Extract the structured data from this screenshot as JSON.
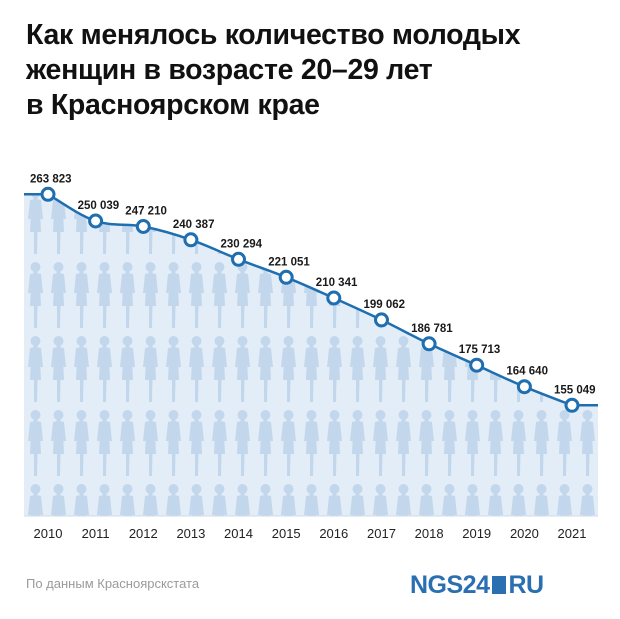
{
  "header": {
    "title_lines": [
      "Как менялось количество молодых",
      "женщин в возрасте 20–29 лет",
      "в Красноярском крае"
    ]
  },
  "footer": {
    "source": "По данным Красноярскстата",
    "logo_main": "NGS24",
    "logo_suffix": "RU"
  },
  "chart_data": {
    "type": "area",
    "x": [
      "2010",
      "2011",
      "2012",
      "2013",
      "2014",
      "2015",
      "2016",
      "2017",
      "2018",
      "2019",
      "2020",
      "2021"
    ],
    "values": [
      263823,
      250039,
      247210,
      240387,
      230294,
      221051,
      210341,
      199062,
      186781,
      175713,
      164640,
      155049
    ],
    "data_labels": [
      "263 823",
      "250 039",
      "247 210",
      "240 387",
      "230 294",
      "221 051",
      "210 341",
      "199 062",
      "186 781",
      "175 713",
      "164 640",
      "155 049"
    ],
    "ylim": [
      98000,
      265000
    ],
    "grid": false,
    "colors": {
      "line": "#1e6eb0",
      "fill": "#e3edf8",
      "figures": "#c3d7ec",
      "marker_fill": "#ffffff"
    }
  }
}
